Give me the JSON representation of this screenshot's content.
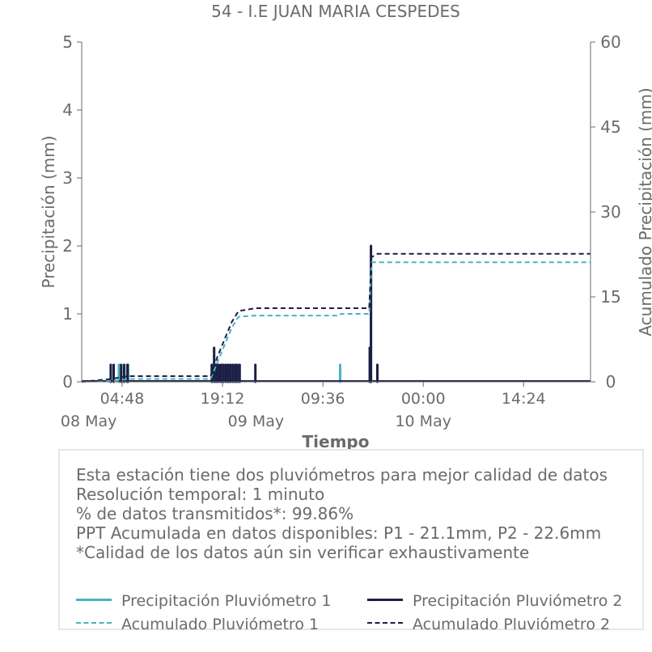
{
  "chart_data": {
    "type": "line",
    "title": "54 - I.E JUAN MARIA CESPEDES",
    "xlabel": "Tiempo",
    "ylabel": "Precipitación (mm)",
    "y2label": "Acumulado Precipitación (mm)",
    "ylim": [
      0,
      5
    ],
    "y2lim": [
      0,
      60
    ],
    "y_ticks": [
      "0",
      "1",
      "2",
      "3",
      "4",
      "5"
    ],
    "y2_ticks": [
      "0",
      "15",
      "30",
      "45",
      "60"
    ],
    "x_range": [
      "2023-05-07 23:00",
      "2023-05-11 00:00"
    ],
    "x_ticks": [
      {
        "at": "2023-05-08 04:48",
        "label": "04:48"
      },
      {
        "at": "2023-05-08 19:12",
        "label": "19:12"
      },
      {
        "at": "2023-05-09 09:36",
        "label": "09:36"
      },
      {
        "at": "2023-05-10 00:00",
        "label": "00:00"
      },
      {
        "at": "2023-05-10 14:24",
        "label": "14:24"
      }
    ],
    "x_date_labels": [
      {
        "at": "2023-05-08 00:00",
        "label": "08 May"
      },
      {
        "at": "2023-05-09 00:00",
        "label": "09 May"
      },
      {
        "at": "2023-05-10 00:00",
        "label": "10 May"
      }
    ],
    "grid": false,
    "legend": "bottom",
    "series": [
      {
        "name": "Precipitación Pluviómetro 1",
        "axis": "left",
        "style": "solid",
        "color": "#4ab3bf",
        "x": [
          "2023-05-08 04:20",
          "2023-05-08 05:30",
          "2023-05-08 05:40",
          "2023-05-08 17:40",
          "2023-05-08 18:10",
          "2023-05-08 18:40",
          "2023-05-08 19:10",
          "2023-05-08 19:40",
          "2023-05-08 20:10",
          "2023-05-08 20:40",
          "2023-05-08 21:10",
          "2023-05-09 12:05",
          "2023-05-09 16:20",
          "2023-05-09 16:30"
        ],
        "values": [
          0.25,
          0.25,
          0.25,
          0.25,
          0.25,
          0.25,
          0.25,
          0.25,
          0.25,
          0.25,
          0.25,
          0.25,
          0.5,
          1.8
        ]
      },
      {
        "name": "Precipitación Pluviómetro 2",
        "axis": "left",
        "style": "solid",
        "color": "#1c1f46",
        "x": [
          "2023-05-08 03:10",
          "2023-05-08 03:35",
          "2023-05-08 04:40",
          "2023-05-08 05:05",
          "2023-05-08 05:35",
          "2023-05-08 17:40",
          "2023-05-08 18:00",
          "2023-05-08 18:20",
          "2023-05-08 18:40",
          "2023-05-08 19:00",
          "2023-05-08 19:20",
          "2023-05-08 19:40",
          "2023-05-08 20:00",
          "2023-05-08 20:20",
          "2023-05-08 20:40",
          "2023-05-08 21:00",
          "2023-05-08 21:20",
          "2023-05-08 21:40",
          "2023-05-08 23:55",
          "2023-05-09 16:20",
          "2023-05-09 16:30",
          "2023-05-09 17:25"
        ],
        "values": [
          0.25,
          0.25,
          0.25,
          0.25,
          0.25,
          0.25,
          0.5,
          0.25,
          0.25,
          0.25,
          0.25,
          0.25,
          0.25,
          0.25,
          0.25,
          0.25,
          0.25,
          0.25,
          0.25,
          0.5,
          2.0,
          0.25
        ]
      },
      {
        "name": "Acumulado Pluviómetro 1",
        "axis": "right",
        "style": "dashed",
        "color": "#4ab3bf",
        "x": [
          "2023-05-07 23:00",
          "2023-05-08 04:20",
          "2023-05-08 05:40",
          "2023-05-08 17:30",
          "2023-05-08 18:30",
          "2023-05-08 19:30",
          "2023-05-08 20:30",
          "2023-05-08 21:30",
          "2023-05-08 23:55",
          "2023-05-09 12:00",
          "2023-05-09 12:10",
          "2023-05-09 16:15",
          "2023-05-09 16:35",
          "2023-05-11 00:00"
        ],
        "values": [
          0,
          0.25,
          0.5,
          0.5,
          3.5,
          6.5,
          9.5,
          11.5,
          11.7,
          11.7,
          12.0,
          12.0,
          21.1,
          21.1
        ]
      },
      {
        "name": "Acumulado Pluviómetro 2",
        "axis": "right",
        "style": "dashed",
        "color": "#1c1f46",
        "x": [
          "2023-05-07 23:00",
          "2023-05-08 03:10",
          "2023-05-08 05:40",
          "2023-05-08 17:30",
          "2023-05-08 18:30",
          "2023-05-08 19:30",
          "2023-05-08 20:30",
          "2023-05-08 21:30",
          "2023-05-08 23:55",
          "2023-05-09 16:15",
          "2023-05-09 16:35",
          "2023-05-09 17:25",
          "2023-05-11 00:00"
        ],
        "values": [
          0,
          0.5,
          1.0,
          1.0,
          4.5,
          7.5,
          10.5,
          12.5,
          13.0,
          13.0,
          22.0,
          22.6,
          22.6
        ]
      }
    ]
  },
  "info": {
    "lines": [
      "Esta estación tiene dos pluviómetros para mejor calidad de datos",
      "Resolución temporal: 1 minuto",
      "% de datos transmitidos*: 99.86%",
      "PPT Acumulada en datos disponibles: P1 - 21.1mm, P2 - 22.6mm",
      "*Calidad de los datos aún sin verificar exhaustivamente"
    ]
  },
  "legend": {
    "items": [
      {
        "label": "Precipitación Pluviómetro 1",
        "color": "#4ab3bf",
        "style": "solid"
      },
      {
        "label": "Precipitación Pluviómetro 2",
        "color": "#1c1f46",
        "style": "solid"
      },
      {
        "label": "Acumulado Pluviómetro 1",
        "color": "#4ab3bf",
        "style": "dashed"
      },
      {
        "label": "Acumulado Pluviómetro 2",
        "color": "#1c1f46",
        "style": "dashed"
      }
    ]
  }
}
